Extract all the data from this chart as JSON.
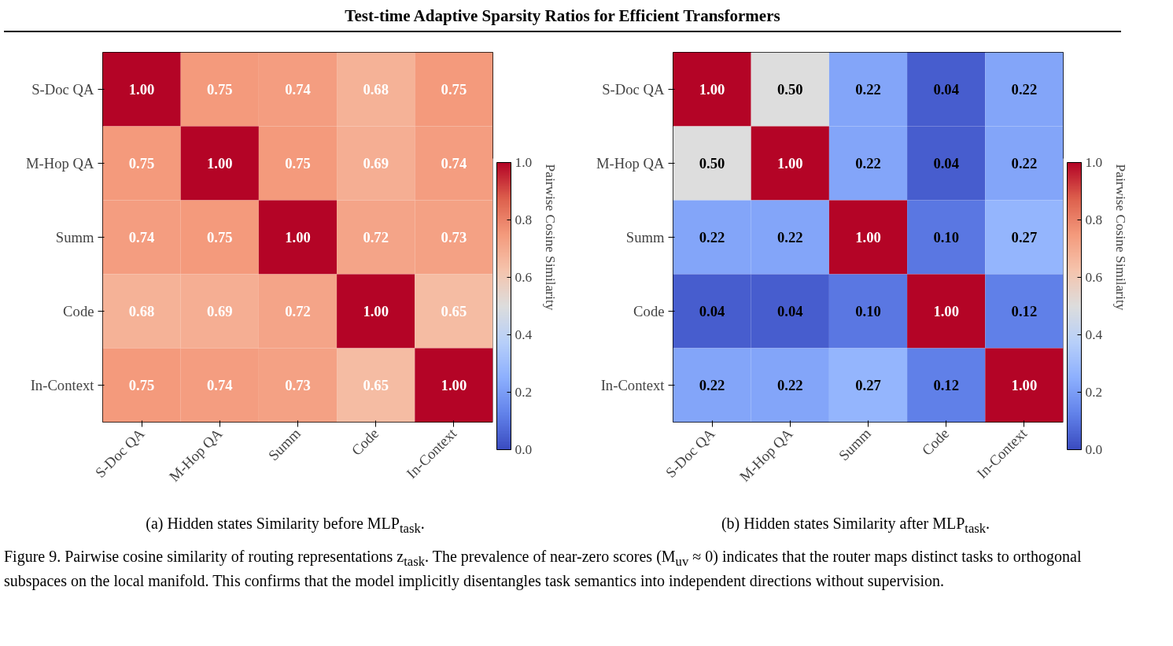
{
  "chart_data": [
    {
      "type": "heatmap",
      "categories": [
        "S-Doc QA",
        "M-Hop QA",
        "Summ",
        "Code",
        "In-Context"
      ],
      "y_categories": [
        "S-Doc QA",
        "M-Hop QA",
        "Summ",
        "Code",
        "In-Context"
      ],
      "cells": [
        [
          1.0,
          0.75,
          0.74,
          0.68,
          0.75
        ],
        [
          0.75,
          1.0,
          0.75,
          0.69,
          0.74
        ],
        [
          0.74,
          0.75,
          1.0,
          0.72,
          0.73
        ],
        [
          0.68,
          0.69,
          0.72,
          1.0,
          0.65
        ],
        [
          0.75,
          0.74,
          0.73,
          0.65,
          1.0
        ]
      ],
      "cell_labels": [
        [
          "1.00",
          "0.75",
          "0.74",
          "0.68",
          "0.75"
        ],
        [
          "0.75",
          "1.00",
          "0.75",
          "0.69",
          "0.74"
        ],
        [
          "0.74",
          "0.75",
          "1.00",
          "0.72",
          "0.73"
        ],
        [
          "0.68",
          "0.69",
          "0.72",
          "1.00",
          "0.65"
        ],
        [
          "0.75",
          "0.74",
          "0.73",
          "0.65",
          "1.00"
        ]
      ],
      "data_labels": true,
      "clim": [
        0,
        1
      ],
      "cticks": [
        {
          "value": 0,
          "label": "0.0"
        },
        {
          "value": 0.2,
          "label": "0.2"
        },
        {
          "value": 0.4,
          "label": "0.4"
        },
        {
          "value": 0.6,
          "label": "0.6"
        },
        {
          "value": 0.8,
          "label": "0.8"
        },
        {
          "value": 1,
          "label": "1.0"
        }
      ],
      "clabel": "Pairwise Cosine Similarity",
      "annotations": [
        "Test-time Adaptive Sparsity Ratios for Efficient Transformers",
        "(a) Hidden states Similarity before MLP$_{task}$."
      ]
    },
    {
      "type": "heatmap",
      "categories": [
        "S-Doc QA",
        "M-Hop QA",
        "Summ",
        "Code",
        "In-Context"
      ],
      "y_categories": [
        "S-Doc QA",
        "M-Hop QA",
        "Summ",
        "Code",
        "In-Context"
      ],
      "cells": [
        [
          1.0,
          0.5,
          0.22,
          0.04,
          0.22
        ],
        [
          0.5,
          1.0,
          0.22,
          0.04,
          0.22
        ],
        [
          0.22,
          0.22,
          1.0,
          0.1,
          0.27
        ],
        [
          0.04,
          0.04,
          0.1,
          1.0,
          0.12
        ],
        [
          0.22,
          0.22,
          0.27,
          0.12,
          1.0
        ]
      ],
      "cell_labels": [
        [
          "1.00",
          "0.50",
          "0.22",
          "0.04",
          "0.22"
        ],
        [
          "0.50",
          "1.00",
          "0.22",
          "0.04",
          "0.22"
        ],
        [
          "0.22",
          "0.22",
          "1.00",
          "0.10",
          "0.27"
        ],
        [
          "0.04",
          "0.04",
          "0.10",
          "1.00",
          "0.12"
        ],
        [
          "0.22",
          "0.22",
          "0.27",
          "0.12",
          "1.00"
        ]
      ],
      "data_labels": true,
      "clim": [
        0,
        1
      ],
      "cticks": [
        {
          "value": 0,
          "label": "0.0"
        },
        {
          "value": 0.2,
          "label": "0.2"
        },
        {
          "value": 0.4,
          "label": "0.4"
        },
        {
          "value": 0.6,
          "label": "0.6"
        },
        {
          "value": 0.8,
          "label": "0.8"
        },
        {
          "value": 1,
          "label": "1.0"
        }
      ],
      "clabel": "Pairwise Cosine Similarity",
      "annotations": [
        "(b) Hidden states Similarity after MLP$_{task}$.",
        "Figure 9. Pairwise cosine similarity of routing representations z$_{task}$. The prevalence of near-zero scores (M$_{uv}$ ≈ 0) indicates that the router maps distinct tasks to orthogonal subspaces on the local manifold. This confirms that the model implicitly disentangles task semantics into independent directions without supervision."
      ]
    }
  ]
}
